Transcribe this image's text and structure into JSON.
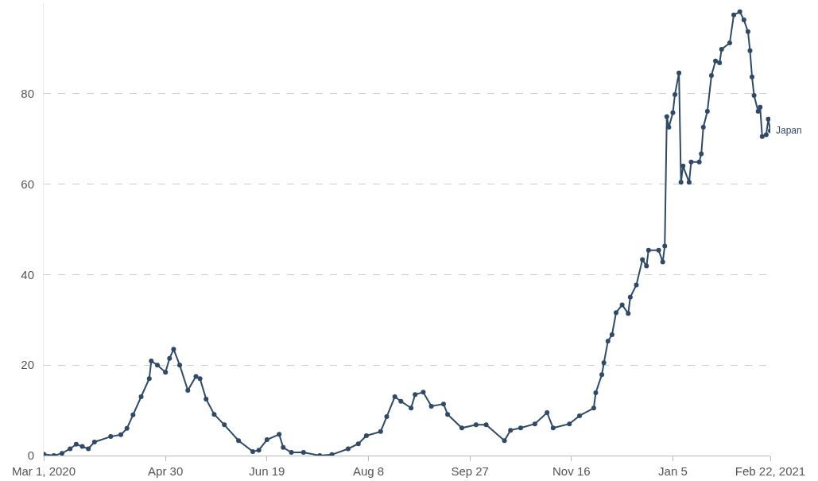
{
  "chart_data": {
    "type": "line",
    "x": [
      "2020-03-01",
      "2020-03-06",
      "2020-03-10",
      "2020-03-14",
      "2020-03-17",
      "2020-03-20",
      "2020-03-23",
      "2020-03-26",
      "2020-04-03",
      "2020-04-08",
      "2020-04-11",
      "2020-04-14",
      "2020-04-18",
      "2020-04-22",
      "2020-04-23",
      "2020-04-26",
      "2020-04-30",
      "2020-05-02",
      "2020-05-04",
      "2020-05-07",
      "2020-05-11",
      "2020-05-15",
      "2020-05-17",
      "2020-05-20",
      "2020-05-24",
      "2020-05-29",
      "2020-06-05",
      "2020-06-12",
      "2020-06-15",
      "2020-06-19",
      "2020-06-25",
      "2020-06-27",
      "2020-07-01",
      "2020-07-07",
      "2020-07-15",
      "2020-07-21",
      "2020-07-29",
      "2020-08-03",
      "2020-08-07",
      "2020-08-14",
      "2020-08-17",
      "2020-08-21",
      "2020-08-24",
      "2020-08-29",
      "2020-08-31",
      "2020-09-04",
      "2020-09-08",
      "2020-09-14",
      "2020-09-16",
      "2020-09-23",
      "2020-09-30",
      "2020-10-05",
      "2020-10-14",
      "2020-10-17",
      "2020-10-22",
      "2020-10-29",
      "2020-11-04",
      "2020-11-07",
      "2020-11-15",
      "2020-11-20",
      "2020-11-27",
      "2020-11-28",
      "2020-12-01",
      "2020-12-02",
      "2020-12-04",
      "2020-12-06",
      "2020-12-08",
      "2020-12-11",
      "2020-12-14",
      "2020-12-15",
      "2020-12-18",
      "2020-12-21",
      "2020-12-23",
      "2020-12-24",
      "2020-12-29",
      "2020-12-31",
      "2021-01-01",
      "2021-01-02",
      "2021-01-03",
      "2021-01-05",
      "2021-01-06",
      "2021-01-08",
      "2021-01-09",
      "2021-01-10",
      "2021-01-13",
      "2021-01-14",
      "2021-01-18",
      "2021-01-19",
      "2021-01-20",
      "2021-01-22",
      "2021-01-24",
      "2021-01-26",
      "2021-01-28",
      "2021-01-29",
      "2021-02-02",
      "2021-02-04",
      "2021-02-07",
      "2021-02-09",
      "2021-02-11",
      "2021-02-12",
      "2021-02-13",
      "2021-02-14",
      "2021-02-16",
      "2021-02-17",
      "2021-02-18",
      "2021-02-20",
      "2021-02-21",
      "2021-02-22"
    ],
    "series": [
      {
        "name": "Japan",
        "color": "#2f4a68",
        "values": [
          0.3,
          0,
          0.5,
          1.5,
          2.5,
          2,
          1.5,
          3,
          4.2,
          4.6,
          6,
          9,
          13,
          17,
          20.9,
          20,
          18.4,
          21.5,
          23.5,
          20,
          14.4,
          17.5,
          17,
          12.5,
          9.1,
          6.8,
          3.3,
          0.9,
          1.2,
          3.5,
          4.7,
          1.8,
          0.7,
          0.7,
          0,
          0.2,
          1.5,
          2.6,
          4.4,
          5.3,
          8.6,
          13,
          12,
          10.5,
          13.5,
          14,
          10.9,
          11.4,
          9.1,
          6.1,
          6.8,
          6.8,
          3.3,
          5.6,
          6.1,
          7,
          9.5,
          6.1,
          7,
          8.8,
          10.5,
          13.9,
          17.9,
          20.5,
          25.3,
          26.7,
          31.6,
          33.3,
          31.4,
          35,
          37.7,
          43.3,
          41.9,
          45.4,
          45.4,
          42.8,
          46.3,
          74.9,
          72.6,
          75.8,
          79.8,
          84.6,
          60.4,
          64,
          60.4,
          64.9,
          64.9,
          66.7,
          72.6,
          76.1,
          84,
          87.2,
          86.8,
          89.8,
          91.2,
          97.4,
          98.1,
          96.3,
          93.7,
          89.5,
          83.7,
          79.6,
          76.1,
          77,
          70.5,
          70.9,
          74.4,
          71.8
        ]
      }
    ],
    "xlim": [
      "2020-03-01",
      "2021-02-22"
    ],
    "xticks": [
      {
        "value": "2020-03-01",
        "label": "Mar 1, 2020"
      },
      {
        "value": "2020-04-30",
        "label": "Apr 30"
      },
      {
        "value": "2020-06-19",
        "label": "Jun 19"
      },
      {
        "value": "2020-08-08",
        "label": "Aug 8"
      },
      {
        "value": "2020-09-27",
        "label": "Sep 27"
      },
      {
        "value": "2020-11-16",
        "label": "Nov 16"
      },
      {
        "value": "2021-01-05",
        "label": "Jan 5"
      },
      {
        "value": "2021-02-22",
        "label": "Feb 22, 2021"
      }
    ],
    "ylim": [
      0,
      100
    ],
    "yticks": [
      0,
      20,
      40,
      60,
      80
    ],
    "grid": "y",
    "marker": "circle",
    "line_style": "solid",
    "legend": false
  }
}
